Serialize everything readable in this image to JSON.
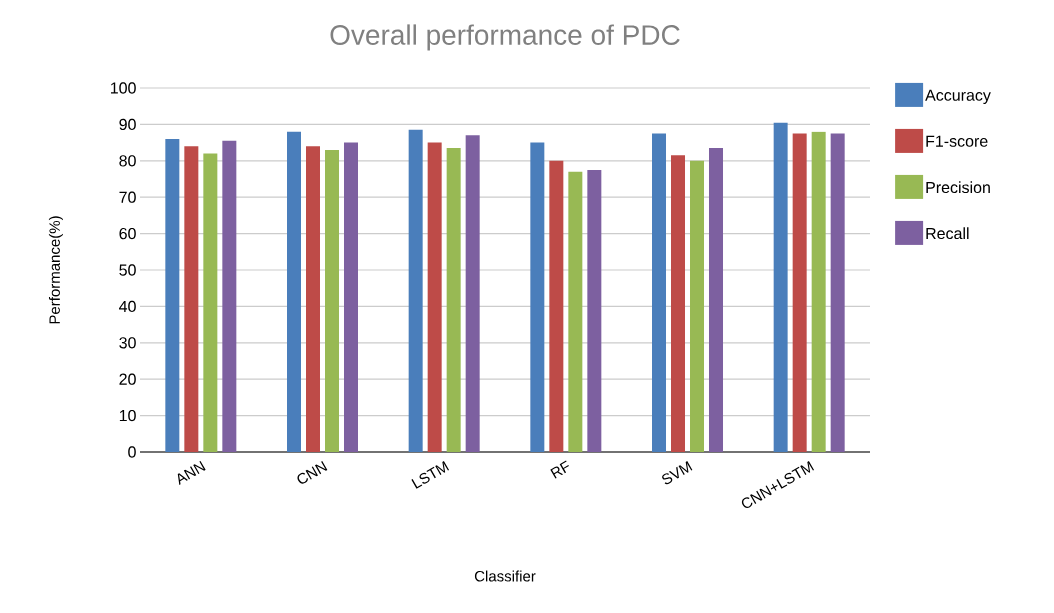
{
  "chart_data": {
    "type": "bar",
    "title": "Overall performance of PDC",
    "xlabel": "Classifier",
    "ylabel": "Performance(%)",
    "categories": [
      "ANN",
      "CNN",
      "LSTM",
      "RF",
      "SVM",
      "CNN+LSTM"
    ],
    "series": [
      {
        "name": "Accuracy",
        "color": "#4a7ebb",
        "values": [
          86,
          88,
          88.5,
          85,
          87.5,
          90.5
        ]
      },
      {
        "name": "F1-score",
        "color": "#be4b48",
        "values": [
          84,
          84,
          85,
          80,
          81.5,
          87.5
        ]
      },
      {
        "name": "Precision",
        "color": "#98b954",
        "values": [
          82,
          83,
          83.5,
          77,
          80,
          88
        ]
      },
      {
        "name": "Recall",
        "color": "#7d60a0",
        "values": [
          85.5,
          85,
          87,
          77.5,
          83.5,
          87.5
        ]
      }
    ],
    "ylim": [
      0,
      100
    ],
    "yticks": [
      0,
      10,
      20,
      30,
      40,
      50,
      60,
      70,
      80,
      90,
      100
    ],
    "grid": "y",
    "legend": "right"
  }
}
